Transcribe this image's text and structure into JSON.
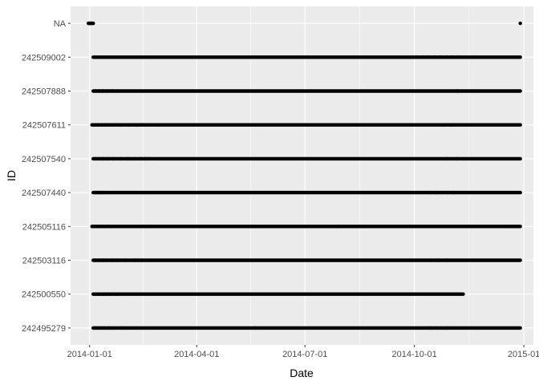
{
  "chart_data": {
    "type": "scatter",
    "xlabel": "Date",
    "ylabel": "ID",
    "x_ticks": [
      "2014-01-01",
      "2014-04-01",
      "2014-07-01",
      "2014-10-01",
      "2015-01-01"
    ],
    "x_tick_labels": [
      "2014-01-01",
      "2014-04-01",
      "2014-07-01",
      "2014-10-01",
      "2015-01"
    ],
    "xlim": [
      "2013-12-16",
      "2015-01-09"
    ],
    "categories": [
      "242495279",
      "242500550",
      "242503116",
      "242505116",
      "242507440",
      "242507540",
      "242507611",
      "242507888",
      "242509002",
      "NA"
    ],
    "series": [
      {
        "id": "242495279",
        "segments": [
          [
            "2014-01-04",
            "2014-12-29"
          ]
        ],
        "points": [
          "2014-01-05",
          "2014-01-07",
          "2014-01-10",
          "2014-01-13",
          "2014-01-17",
          "2014-01-20",
          "2014-01-28",
          "2014-05-20",
          "2014-10-15",
          "2014-10-20",
          "2014-10-28"
        ]
      },
      {
        "id": "242500550",
        "segments": [
          [
            "2014-01-04",
            "2014-11-11"
          ]
        ],
        "points": [
          "2014-01-06",
          "2014-01-09",
          "2014-01-12",
          "2014-01-15",
          "2014-01-18",
          "2014-01-24"
        ]
      },
      {
        "id": "242503116",
        "segments": [
          [
            "2014-01-04",
            "2014-12-29"
          ]
        ],
        "points": [
          "2014-01-06",
          "2014-01-09",
          "2014-01-12",
          "2014-01-15",
          "2014-01-20",
          "2014-01-24",
          "2014-01-31",
          "2014-02-08",
          "2014-02-14",
          "2014-10-15",
          "2014-10-21",
          "2014-10-28"
        ]
      },
      {
        "id": "242505116",
        "segments": [
          [
            "2014-01-03",
            "2014-12-29"
          ]
        ],
        "points": [
          "2014-01-05",
          "2014-01-08",
          "2014-01-11",
          "2014-01-16",
          "2014-02-21",
          "2014-07-29"
        ]
      },
      {
        "id": "242507440",
        "segments": [
          [
            "2014-01-04",
            "2014-12-29"
          ]
        ],
        "points": [
          "2014-01-06",
          "2014-01-09",
          "2014-01-13",
          "2014-10-14",
          "2014-10-19",
          "2014-10-24",
          "2014-10-29",
          "2014-11-03"
        ]
      },
      {
        "id": "242507540",
        "segments": [
          [
            "2014-01-04",
            "2014-12-29"
          ]
        ],
        "points": [
          "2014-01-06",
          "2014-01-09",
          "2014-01-12",
          "2014-01-16",
          "2014-01-21",
          "2014-01-27",
          "2014-02-02",
          "2014-02-08",
          "2014-02-13",
          "2014-02-17",
          "2014-02-20",
          "2014-10-28",
          "2014-11-06"
        ]
      },
      {
        "id": "242507611",
        "segments": [
          [
            "2014-01-03",
            "2014-12-29"
          ]
        ],
        "points": [
          "2014-01-05",
          "2014-01-08",
          "2014-01-11",
          "2014-01-15",
          "2014-01-20",
          "2014-01-27",
          "2014-02-03",
          "2014-02-10",
          "2014-02-17",
          "2014-03-01",
          "2014-10-25",
          "2014-11-01"
        ]
      },
      {
        "id": "242507888",
        "segments": [
          [
            "2014-01-04",
            "2014-12-29"
          ]
        ],
        "points": [
          "2014-01-06",
          "2014-01-09",
          "2014-01-12",
          "2014-01-16",
          "2014-01-20",
          "2014-11-06"
        ]
      },
      {
        "id": "242509002",
        "segments": [
          [
            "2014-01-04",
            "2014-12-29"
          ]
        ],
        "points": [
          "2014-09-28",
          "2014-10-03",
          "2014-10-08",
          "2014-10-13",
          "2014-10-18",
          "2014-10-23",
          "2014-10-28",
          "2014-11-02",
          "2014-11-07"
        ]
      },
      {
        "id": "NA",
        "segments": [
          [
            "2013-12-31",
            "2014-01-04"
          ]
        ],
        "points": [
          "2013-12-31",
          "2014-01-01",
          "2014-01-02",
          "2014-01-03",
          "2014-01-04",
          "2014-12-29"
        ]
      }
    ],
    "grid": true,
    "legend": "none"
  }
}
